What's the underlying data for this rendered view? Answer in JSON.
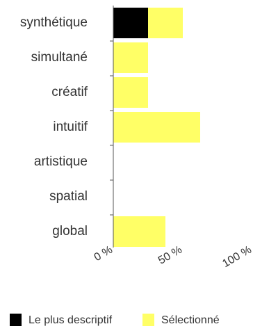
{
  "chart_data": {
    "type": "bar",
    "orientation": "horizontal",
    "stacked": true,
    "categories": [
      "synthétique",
      "simultané",
      "créatif",
      "intuitif",
      "artistique",
      "spatial",
      "global"
    ],
    "series": [
      {
        "name": "Le plus descriptif",
        "color": "#000000",
        "values": [
          25,
          0,
          0,
          0,
          0,
          0,
          0
        ]
      },
      {
        "name": "Sélectionné",
        "color": "#ffff66",
        "values": [
          25,
          25,
          25,
          62.5,
          0,
          0,
          37.5
        ]
      }
    ],
    "xlim": [
      0,
      100
    ],
    "x_ticks": [
      "0 %",
      "50 %",
      "100 %"
    ],
    "grid": false,
    "legend_position": "bottom"
  }
}
